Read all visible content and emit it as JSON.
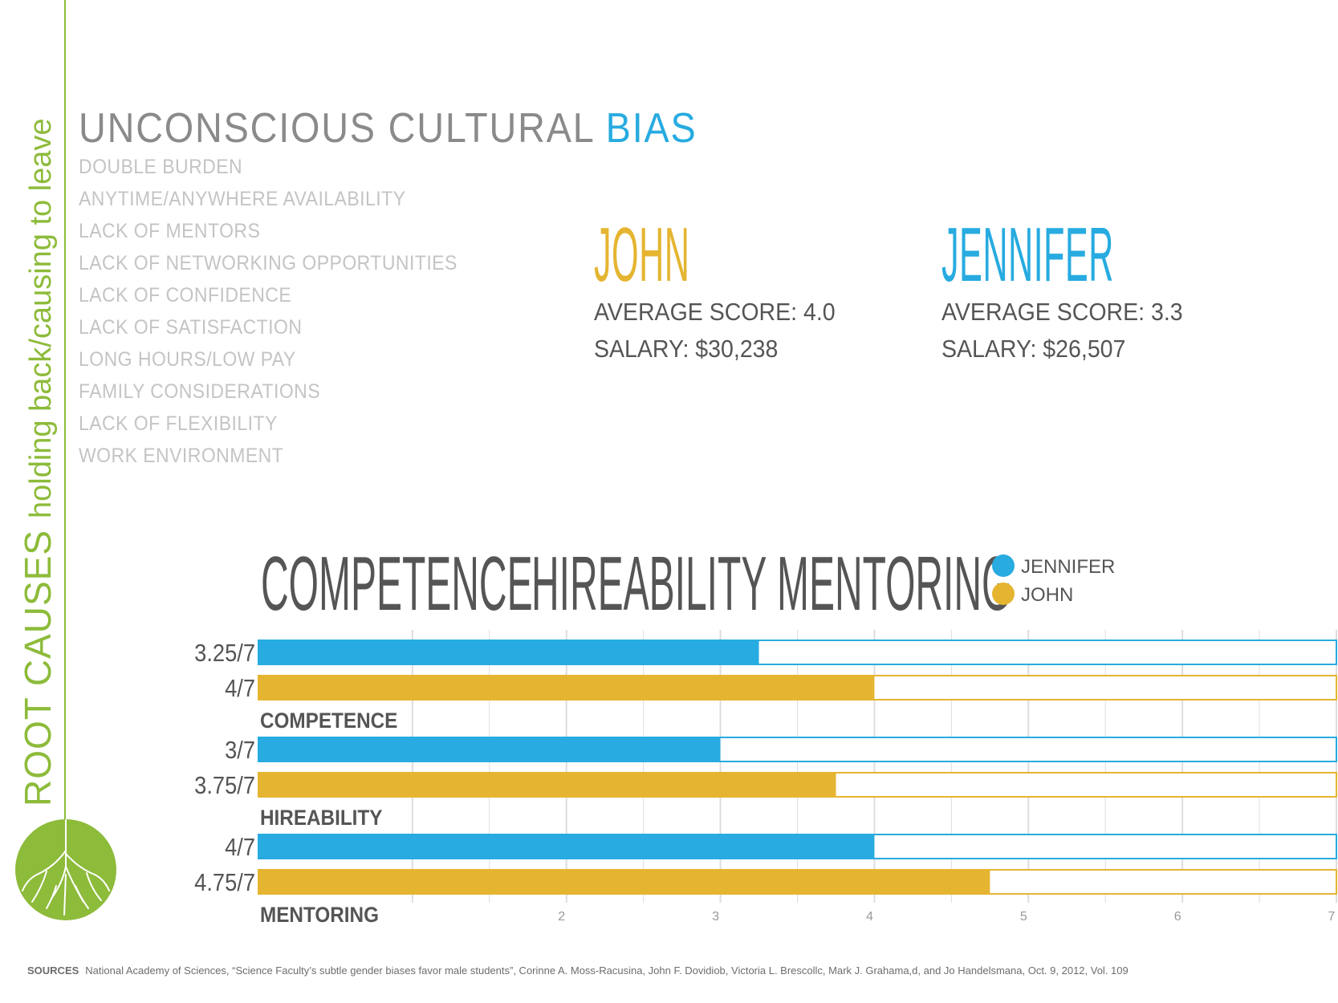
{
  "side": {
    "title": "ROOT CAUSES",
    "subtitle": "holding back/causing to leave"
  },
  "heading": {
    "main": "UNCONSCIOUS CULTURAL",
    "accent": "BIAS"
  },
  "causes": [
    "DOUBLE BURDEN",
    "ANYTIME/ANYWHERE AVAILABILITY",
    "LACK OF MENTORS",
    "LACK OF NETWORKING OPPORTUNITIES",
    "LACK OF CONFIDENCE",
    "LACK OF SATISFACTION",
    "LONG HOURS/LOW PAY",
    "FAMILY CONSIDERATIONS",
    "LACK OF FLEXIBILITY",
    "WORK ENVIRONMENT"
  ],
  "profiles": {
    "john": {
      "name": "JOHN",
      "score": "AVERAGE SCORE: 4.0",
      "salary": "SALARY: $30,238"
    },
    "jennifer": {
      "name": "JENNIFER",
      "score": "AVERAGE SCORE: 3.3",
      "salary": "SALARY: $26,507"
    }
  },
  "colors": {
    "jennifer": "#27abe0",
    "john": "#e5b531",
    "green": "#8dbb3a",
    "grid": "#dddddd"
  },
  "sources": {
    "label": "SOURCES",
    "text": "National Academy of Sciences, “Science Faculty’s subtle gender biases favor male students”, Corinne A. Moss-Racusina, John F. Dovidiob, Victoria L. Brescollc, Mark J. Grahama,d, and Jo Handelsmana,  Oct. 9, 2012, Vol. 109"
  },
  "chart_data": {
    "type": "bar",
    "orientation": "horizontal",
    "title": "COMPETENCE   HIREABILITY   MENTORING",
    "categories": [
      "COMPETENCE",
      "HIREABILITY",
      "MENTORING"
    ],
    "series": [
      {
        "name": "JENNIFER",
        "values": [
          3.25,
          3,
          4
        ],
        "labels": [
          "3.25/7",
          "3/7",
          "4/7"
        ]
      },
      {
        "name": "JOHN",
        "values": [
          4,
          3.75,
          4.75
        ],
        "labels": [
          "4/7",
          "3.75/7",
          "4.75/7"
        ]
      }
    ],
    "xlim": [
      0,
      7
    ],
    "xticks": [
      "2",
      "3",
      "4",
      "5",
      "6",
      "7"
    ],
    "grid": true,
    "legend": "top-right"
  }
}
